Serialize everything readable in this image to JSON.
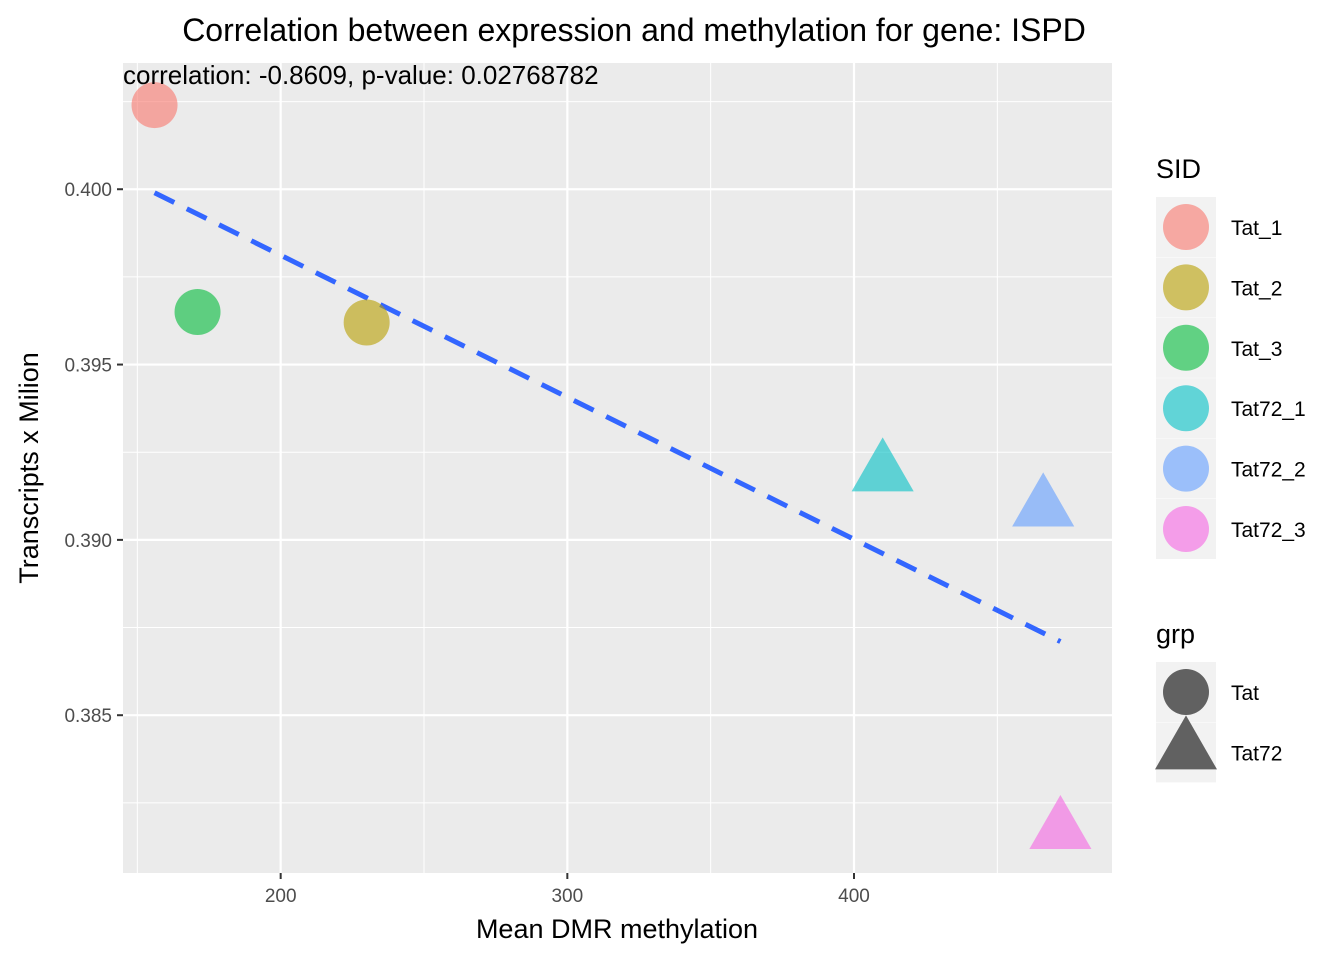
{
  "chart_data": {
    "type": "scatter",
    "title": "Correlation between expression and methylation for gene: ISPD",
    "annotation": "correlation: -0.8609, p-value: 0.02768782",
    "xlabel": "Mean DMR methylation",
    "ylabel": "Transcripts x Milion",
    "xlim": [
      145,
      490
    ],
    "ylim": [
      0.3805,
      0.4036
    ],
    "x_ticks": [
      200,
      300,
      400
    ],
    "x_tick_labels": [
      "200",
      "300",
      "400"
    ],
    "y_ticks": [
      0.385,
      0.39,
      0.395,
      0.4
    ],
    "y_tick_labels": [
      "0.385",
      "0.390",
      "0.395",
      "0.400"
    ],
    "grid": true,
    "legend_position": "right",
    "points": [
      {
        "sid": "Tat_1",
        "grp": "Tat",
        "x": 156,
        "y": 0.4024
      },
      {
        "sid": "Tat_2",
        "grp": "Tat",
        "x": 230,
        "y": 0.3962
      },
      {
        "sid": "Tat_3",
        "grp": "Tat",
        "x": 171,
        "y": 0.3965
      },
      {
        "sid": "Tat72_1",
        "grp": "Tat72",
        "x": 410,
        "y": 0.392
      },
      {
        "sid": "Tat72_2",
        "grp": "Tat72",
        "x": 466,
        "y": 0.391
      },
      {
        "sid": "Tat72_3",
        "grp": "Tat72",
        "x": 472,
        "y": 0.3818
      }
    ],
    "trend_line": {
      "style": "dashed",
      "color": "#3366ff",
      "x": [
        156,
        472
      ],
      "y": [
        0.3999,
        0.3871
      ]
    },
    "legend_sid": {
      "title": "SID",
      "items": [
        {
          "label": "Tat_1",
          "color": "#f8766d"
        },
        {
          "label": "Tat_2",
          "color": "#b79f00"
        },
        {
          "label": "Tat_3",
          "color": "#00ba38"
        },
        {
          "label": "Tat72_1",
          "color": "#00bfc4"
        },
        {
          "label": "Tat72_2",
          "color": "#619cff"
        },
        {
          "label": "Tat72_3",
          "color": "#f564e3"
        }
      ]
    },
    "legend_grp": {
      "title": "grp",
      "items": [
        {
          "label": "Tat",
          "shape": "circle"
        },
        {
          "label": "Tat72",
          "shape": "triangle"
        }
      ]
    },
    "panel_background": "#ebebeb",
    "grid_color": "#ffffff",
    "point_alpha": 0.6
  }
}
